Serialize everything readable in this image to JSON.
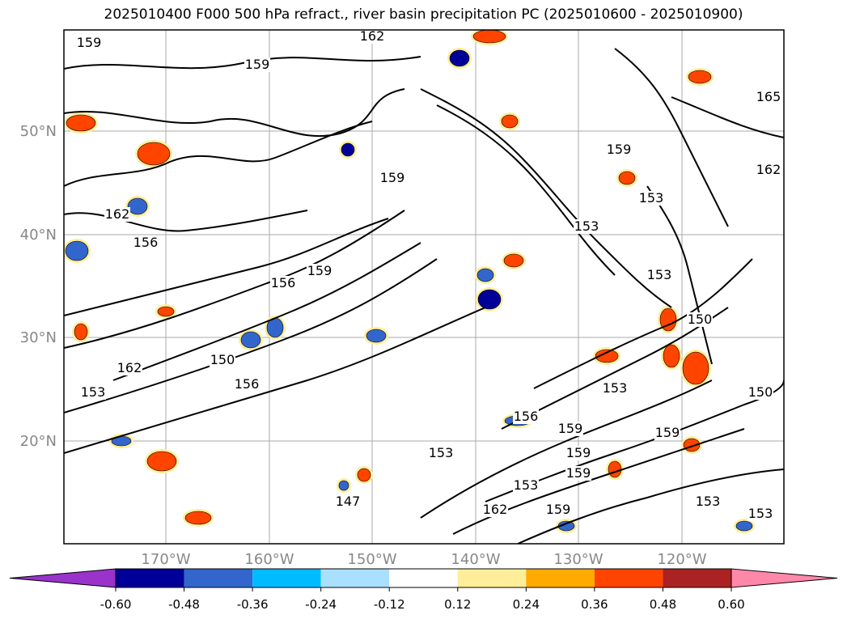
{
  "title": "2025010400 F000 500 hPa refract., river basin precipitation PC (2025010600 - 2025010900)",
  "lat_labels": [
    "50°N",
    "40°N",
    "30°N",
    "20°N"
  ],
  "lon_labels": [
    "170°W",
    "160°W",
    "150°W",
    "140°W",
    "130°W",
    "120°W"
  ],
  "contour_labels": [
    "159",
    "162",
    "159",
    "165",
    "162",
    "156",
    "159",
    "156",
    "159",
    "159",
    "162",
    "153",
    "153",
    "153",
    "150",
    "162",
    "150",
    "153",
    "156",
    "153",
    "156",
    "159",
    "159",
    "159",
    "153",
    "153",
    "159",
    "162",
    "159",
    "153",
    "153",
    "147",
    "150"
  ],
  "colorbar": {
    "ticks": [
      "-0.60",
      "-0.48",
      "-0.36",
      "-0.24",
      "-0.12",
      "0.12",
      "0.24",
      "0.36",
      "0.48",
      "0.60"
    ],
    "colors": [
      "#9933cc",
      "#000099",
      "#3366cc",
      "#00bbff",
      "#aae0ff",
      "#ffffff",
      "#ffee99",
      "#ffaa00",
      "#ff4400",
      "#aa2222",
      "#ff88aa"
    ]
  }
}
